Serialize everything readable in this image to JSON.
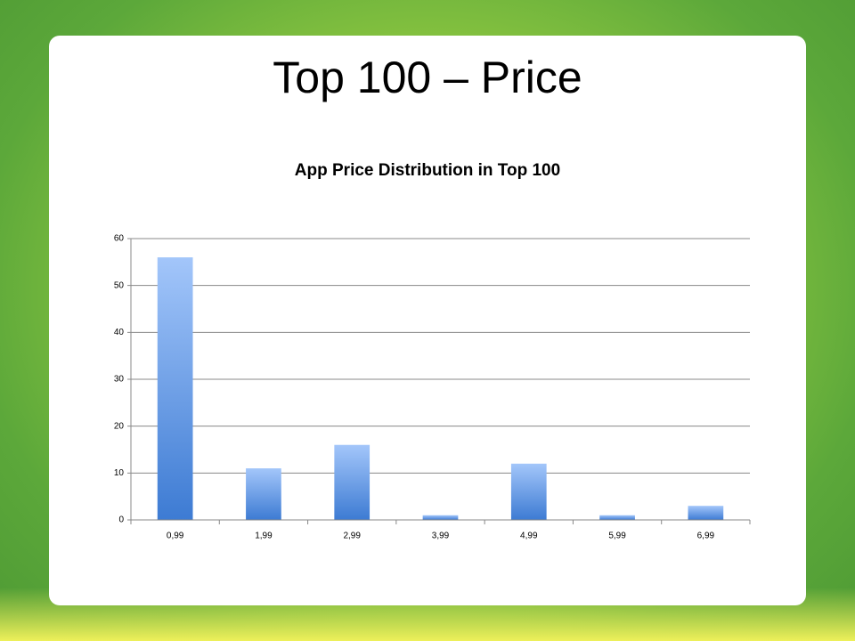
{
  "slide": {
    "title": "Top 100 – Price"
  },
  "chart_data": {
    "type": "bar",
    "title": "App Price Distribution in Top 100",
    "categories": [
      "0,99",
      "1,99",
      "2,99",
      "3,99",
      "4,99",
      "5,99",
      "6,99"
    ],
    "values": [
      56,
      11,
      16,
      1,
      12,
      1,
      3
    ],
    "color": "#3d7bd3",
    "ylim": [
      0,
      60
    ],
    "yticks": [
      0,
      10,
      20,
      30,
      40,
      50,
      60
    ],
    "grid": true
  }
}
